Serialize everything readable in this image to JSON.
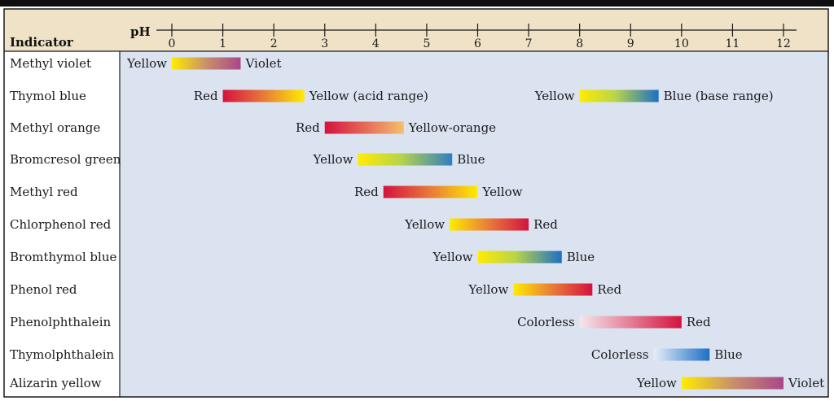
{
  "chart_data": {
    "type": "range-bar",
    "header": {
      "column_label": "Indicator",
      "axis_label": "pH"
    },
    "x_ticks": [
      0,
      1,
      2,
      3,
      4,
      5,
      6,
      7,
      8,
      9,
      10,
      11,
      12
    ],
    "xlim": [
      0,
      12
    ],
    "colors": {
      "yellow": "#ffec00",
      "violet": "#a9478a",
      "red": "#d4123e",
      "orange": "#e87a3a",
      "yellow_orange": "#f5bf6e",
      "blue": "#1d6fc4",
      "colorless": "#f4e7ec",
      "colorless_blue": "#e6eef9",
      "panel": "#dbe3f1",
      "header": "#efe2c6"
    },
    "indicators": [
      {
        "name": "Methyl violet",
        "ranges": [
          {
            "start": 0.0,
            "end": 1.35,
            "low_label": "Yellow",
            "high_label": "Violet",
            "low_color": "#ffec00",
            "high_color": "#a9478a"
          }
        ]
      },
      {
        "name": "Thymol blue",
        "ranges": [
          {
            "start": 1.0,
            "end": 2.6,
            "low_label": "Red",
            "high_label": "Yellow (acid range)",
            "low_color": "#d4123e",
            "high_color": "#ffec00"
          },
          {
            "start": 8.0,
            "end": 9.55,
            "low_label": "Yellow",
            "high_label": "Blue (base range)",
            "low_color": "#ffec00",
            "high_color": "#1d6fc4"
          }
        ]
      },
      {
        "name": "Methyl orange",
        "ranges": [
          {
            "start": 3.0,
            "end": 4.55,
            "low_label": "Red",
            "high_label": "Yellow-orange",
            "low_color": "#d4123e",
            "high_color": "#f5bf6e"
          }
        ]
      },
      {
        "name": "Bromcresol green",
        "ranges": [
          {
            "start": 3.65,
            "end": 5.5,
            "low_label": "Yellow",
            "high_label": "Blue",
            "low_color": "#ffec00",
            "high_color": "#2f7fc2"
          }
        ]
      },
      {
        "name": "Methyl red",
        "ranges": [
          {
            "start": 4.15,
            "end": 6.0,
            "low_label": "Red",
            "high_label": "Yellow",
            "low_color": "#d4123e",
            "high_color": "#ffec00"
          }
        ]
      },
      {
        "name": "Chlorphenol red",
        "ranges": [
          {
            "start": 5.45,
            "end": 7.0,
            "low_label": "Yellow",
            "high_label": "Red",
            "low_color": "#ffec00",
            "high_color": "#d4123e"
          }
        ]
      },
      {
        "name": "Bromthymol blue",
        "ranges": [
          {
            "start": 6.0,
            "end": 7.65,
            "low_label": "Yellow",
            "high_label": "Blue",
            "low_color": "#ffec00",
            "high_color": "#1d6fc4"
          }
        ]
      },
      {
        "name": "Phenol red",
        "ranges": [
          {
            "start": 6.7,
            "end": 8.25,
            "low_label": "Yellow",
            "high_label": "Red",
            "low_color": "#ffec00",
            "high_color": "#d4123e"
          }
        ]
      },
      {
        "name": "Phenolphthalein",
        "ranges": [
          {
            "start": 8.0,
            "end": 10.0,
            "low_label": "Colorless",
            "high_label": "Red",
            "low_color": "#f4e7ec",
            "high_color": "#d4123e"
          }
        ]
      },
      {
        "name": "Thymolphthalein",
        "ranges": [
          {
            "start": 9.45,
            "end": 10.55,
            "low_label": "Colorless",
            "high_label": "Blue",
            "low_color": "#e6eef9",
            "high_color": "#1d6fc4"
          }
        ]
      },
      {
        "name": "Alizarin yellow",
        "ranges": [
          {
            "start": 10.0,
            "end": 12.0,
            "low_label": "Yellow",
            "high_label": "Violet",
            "low_color": "#ffec00",
            "high_color": "#a9478a"
          }
        ]
      }
    ]
  }
}
